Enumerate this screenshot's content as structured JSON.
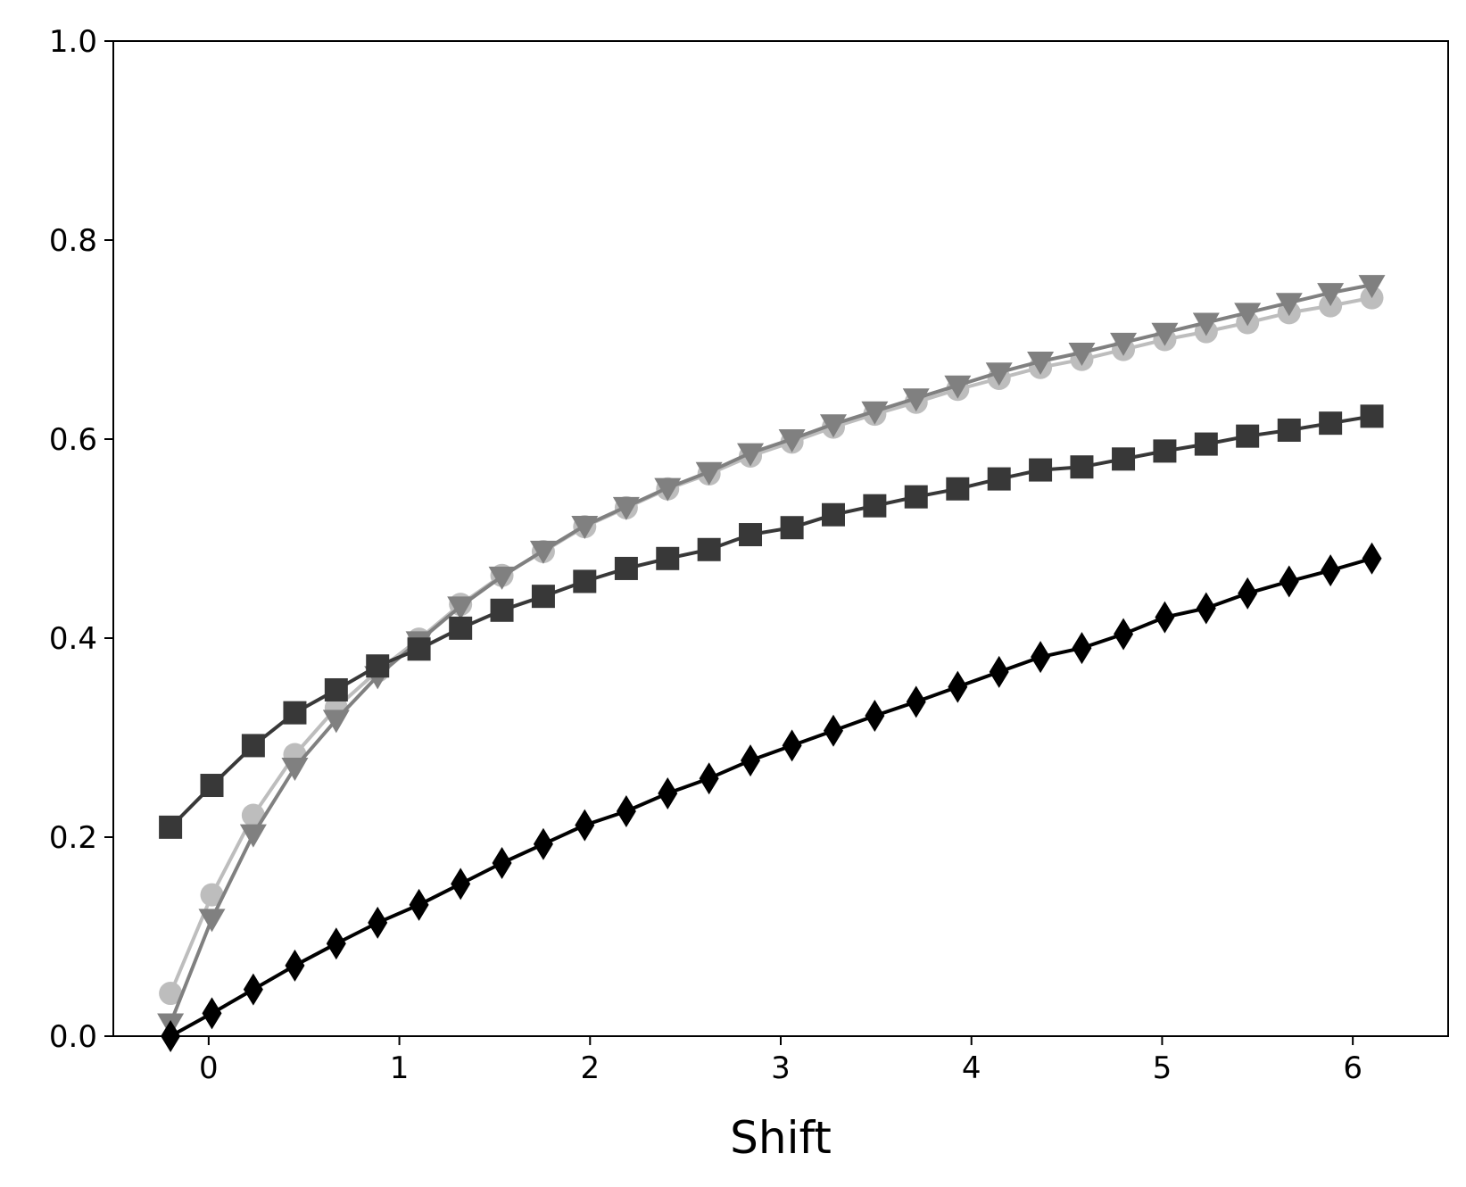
{
  "chart_data": {
    "type": "line",
    "title": "",
    "xlabel": "Shift",
    "ylabel": "",
    "xlim": [
      -0.5,
      6.5
    ],
    "ylim": [
      0.0,
      1.0
    ],
    "xticks": [
      0,
      1,
      2,
      3,
      4,
      5,
      6
    ],
    "xtick_labels": [
      "0",
      "1",
      "2",
      "3",
      "4",
      "5",
      "6"
    ],
    "yticks": [
      0.0,
      0.2,
      0.4,
      0.6,
      0.8,
      1.0
    ],
    "ytick_labels": [
      "0.0",
      "0.2",
      "0.4",
      "0.6",
      "0.8",
      "1.0"
    ],
    "grid": false,
    "legend": "none",
    "x": [
      -0.2,
      0.017,
      0.234,
      0.452,
      0.669,
      0.886,
      1.103,
      1.321,
      1.538,
      1.755,
      1.972,
      2.19,
      2.407,
      2.624,
      2.841,
      3.059,
      3.276,
      3.493,
      3.71,
      3.928,
      4.145,
      4.362,
      4.579,
      4.797,
      5.014,
      5.231,
      5.448,
      5.666,
      5.883,
      6.1
    ],
    "series": [
      {
        "marker": "circle",
        "color": "#bdbdbd",
        "values": [
          0.043,
          0.142,
          0.222,
          0.283,
          0.33,
          0.367,
          0.399,
          0.434,
          0.463,
          0.487,
          0.512,
          0.531,
          0.55,
          0.565,
          0.583,
          0.597,
          0.612,
          0.625,
          0.637,
          0.65,
          0.661,
          0.672,
          0.68,
          0.69,
          0.7,
          0.708,
          0.717,
          0.727,
          0.734,
          0.742
        ]
      },
      {
        "marker": "triangle-down",
        "color": "#808080",
        "values": [
          0.013,
          0.118,
          0.203,
          0.27,
          0.318,
          0.362,
          0.397,
          0.432,
          0.462,
          0.488,
          0.513,
          0.532,
          0.551,
          0.567,
          0.586,
          0.6,
          0.615,
          0.628,
          0.641,
          0.654,
          0.667,
          0.678,
          0.687,
          0.697,
          0.707,
          0.717,
          0.727,
          0.737,
          0.747,
          0.755
        ]
      },
      {
        "marker": "square",
        "color": "#383838",
        "values": [
          0.21,
          0.252,
          0.292,
          0.325,
          0.348,
          0.372,
          0.389,
          0.41,
          0.428,
          0.442,
          0.457,
          0.47,
          0.48,
          0.489,
          0.504,
          0.511,
          0.524,
          0.533,
          0.542,
          0.55,
          0.56,
          0.569,
          0.572,
          0.58,
          0.588,
          0.595,
          0.603,
          0.609,
          0.616,
          0.623
        ]
      },
      {
        "marker": "diamond",
        "color": "#000000",
        "values": [
          0.0,
          0.023,
          0.047,
          0.071,
          0.093,
          0.114,
          0.132,
          0.153,
          0.174,
          0.193,
          0.212,
          0.226,
          0.244,
          0.259,
          0.277,
          0.292,
          0.307,
          0.322,
          0.336,
          0.351,
          0.366,
          0.381,
          0.39,
          0.404,
          0.421,
          0.43,
          0.445,
          0.457,
          0.468,
          0.48
        ]
      }
    ]
  }
}
